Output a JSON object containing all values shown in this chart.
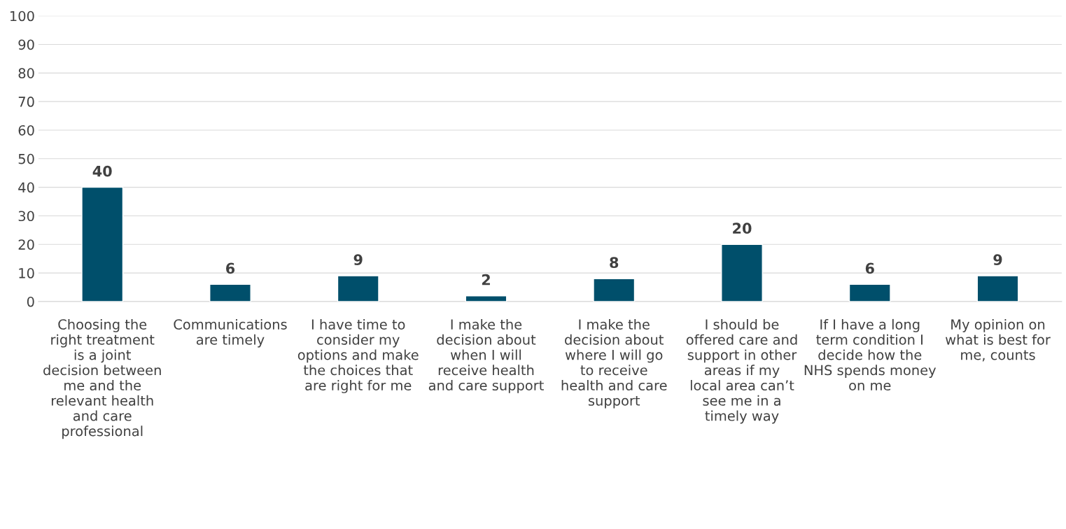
{
  "chart_data": {
    "type": "bar",
    "categories": [
      "Choosing the right treatment is a joint decision between me and the relevant health and care professional",
      "Communications are timely",
      "I have time to consider my options and make the choices that are right for me",
      "I make the decision about when I will receive health and care support",
      "I make the decision about where I will go to receive health and care support",
      "I should be offered care and support in other areas if my local area can’t see me in a timely way",
      "If I have a long term condition I decide how the NHS spends money on me",
      "My opinion on what is best for me, counts"
    ],
    "values": [
      40,
      6,
      9,
      2,
      8,
      20,
      6,
      9
    ],
    "color": "#004f6b",
    "ylim": [
      0,
      100
    ],
    "yticks": [
      0,
      10,
      20,
      30,
      40,
      50,
      60,
      70,
      80,
      90,
      100
    ],
    "grid": "y",
    "data_labels": true
  }
}
